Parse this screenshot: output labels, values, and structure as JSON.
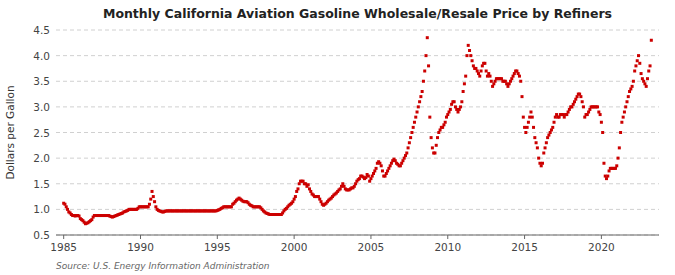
{
  "chart_data": {
    "type": "scatter",
    "title": "Monthly California Aviation Gasoline Wholesale/Resale Price by Refiners",
    "y_label": "Dollars per Gallon",
    "annotations": [
      "Source: U.S. Energy Information Administration"
    ],
    "color": "#cc0000",
    "marker": "square",
    "grid": "y",
    "xlim": [
      1984.5,
      2023.75
    ],
    "ylim": [
      0.5,
      4.5
    ],
    "xticks": [
      1985,
      1990,
      1995,
      2000,
      2005,
      2010,
      2015,
      2020
    ],
    "yticks": [
      0.5,
      {
        "value": 1.0,
        "label": "1.0"
      },
      1.5,
      {
        "value": 2.0,
        "label": "2.0"
      },
      2.5,
      {
        "value": 3.0,
        "label": "3.0"
      },
      3.5,
      {
        "value": 4.0,
        "label": "4.0"
      },
      4.5
    ],
    "x": [
      1985.0,
      1985.083,
      1985.167,
      1985.25,
      1985.333,
      1985.417,
      1985.5,
      1985.583,
      1985.667,
      1985.75,
      1985.833,
      1985.917,
      1986.0,
      1986.083,
      1986.167,
      1986.25,
      1986.333,
      1986.417,
      1986.5,
      1986.583,
      1986.667,
      1986.75,
      1986.833,
      1986.917,
      1987.0,
      1987.083,
      1987.167,
      1987.25,
      1987.333,
      1987.417,
      1987.5,
      1987.583,
      1987.667,
      1987.75,
      1987.833,
      1987.917,
      1988.0,
      1988.083,
      1988.167,
      1988.25,
      1988.333,
      1988.417,
      1988.5,
      1988.583,
      1988.667,
      1988.75,
      1988.833,
      1988.917,
      1989.0,
      1989.083,
      1989.167,
      1989.25,
      1989.333,
      1989.417,
      1989.5,
      1989.583,
      1989.667,
      1989.75,
      1989.833,
      1989.917,
      1990.0,
      1990.083,
      1990.167,
      1990.25,
      1990.333,
      1990.417,
      1990.5,
      1990.583,
      1990.667,
      1990.75,
      1990.833,
      1990.917,
      1991.0,
      1991.083,
      1991.167,
      1991.25,
      1991.333,
      1991.417,
      1991.5,
      1991.583,
      1991.667,
      1991.75,
      1991.833,
      1991.917,
      1992.0,
      1992.083,
      1992.167,
      1992.25,
      1992.333,
      1992.417,
      1992.5,
      1992.583,
      1992.667,
      1992.75,
      1992.833,
      1992.917,
      1993.0,
      1993.083,
      1993.167,
      1993.25,
      1993.333,
      1993.417,
      1993.5,
      1993.583,
      1993.667,
      1993.75,
      1993.833,
      1993.917,
      1994.0,
      1994.083,
      1994.167,
      1994.25,
      1994.333,
      1994.417,
      1994.5,
      1994.583,
      1994.667,
      1994.75,
      1994.833,
      1994.917,
      1995.0,
      1995.083,
      1995.167,
      1995.25,
      1995.333,
      1995.417,
      1995.5,
      1995.583,
      1995.667,
      1995.75,
      1995.833,
      1995.917,
      1996.0,
      1996.083,
      1996.167,
      1996.25,
      1996.333,
      1996.417,
      1996.5,
      1996.583,
      1996.667,
      1996.75,
      1996.833,
      1996.917,
      1997.0,
      1997.083,
      1997.167,
      1997.25,
      1997.333,
      1997.417,
      1997.5,
      1997.583,
      1997.667,
      1997.75,
      1997.833,
      1997.917,
      1998.0,
      1998.083,
      1998.167,
      1998.25,
      1998.333,
      1998.417,
      1998.5,
      1998.583,
      1998.667,
      1998.75,
      1998.833,
      1998.917,
      1999.0,
      1999.083,
      1999.167,
      1999.25,
      1999.333,
      1999.417,
      1999.5,
      1999.583,
      1999.667,
      1999.75,
      1999.833,
      1999.917,
      2000.0,
      2000.083,
      2000.167,
      2000.25,
      2000.333,
      2000.417,
      2000.5,
      2000.583,
      2000.667,
      2000.75,
      2000.833,
      2000.917,
      2001.0,
      2001.083,
      2001.167,
      2001.25,
      2001.333,
      2001.417,
      2001.5,
      2001.583,
      2001.667,
      2001.75,
      2001.833,
      2001.917,
      2002.0,
      2002.083,
      2002.167,
      2002.25,
      2002.333,
      2002.417,
      2002.5,
      2002.583,
      2002.667,
      2002.75,
      2002.833,
      2002.917,
      2003.0,
      2003.083,
      2003.167,
      2003.25,
      2003.333,
      2003.417,
      2003.5,
      2003.583,
      2003.667,
      2003.75,
      2003.833,
      2003.917,
      2004.0,
      2004.083,
      2004.167,
      2004.25,
      2004.333,
      2004.417,
      2004.5,
      2004.583,
      2004.667,
      2004.75,
      2004.833,
      2004.917,
      2005.0,
      2005.083,
      2005.167,
      2005.25,
      2005.333,
      2005.417,
      2005.5,
      2005.583,
      2005.667,
      2005.75,
      2005.833,
      2005.917,
      2006.0,
      2006.083,
      2006.167,
      2006.25,
      2006.333,
      2006.417,
      2006.5,
      2006.583,
      2006.667,
      2006.75,
      2006.833,
      2006.917,
      2007.0,
      2007.083,
      2007.167,
      2007.25,
      2007.333,
      2007.417,
      2007.5,
      2007.583,
      2007.667,
      2007.75,
      2007.833,
      2007.917,
      2008.0,
      2008.083,
      2008.167,
      2008.25,
      2008.333,
      2008.417,
      2008.5,
      2008.583,
      2008.667,
      2008.75,
      2008.833,
      2008.917,
      2009.0,
      2009.083,
      2009.167,
      2009.25,
      2009.333,
      2009.417,
      2009.5,
      2009.583,
      2009.667,
      2009.75,
      2009.833,
      2009.917,
      2010.0,
      2010.083,
      2010.167,
      2010.25,
      2010.333,
      2010.417,
      2010.5,
      2010.583,
      2010.667,
      2010.75,
      2010.833,
      2010.917,
      2011.0,
      2011.083,
      2011.167,
      2011.25,
      2011.333,
      2011.417,
      2011.5,
      2011.583,
      2011.667,
      2011.75,
      2011.833,
      2011.917,
      2012.0,
      2012.083,
      2012.167,
      2012.25,
      2012.333,
      2012.417,
      2012.5,
      2012.583,
      2012.667,
      2012.75,
      2012.833,
      2012.917,
      2013.0,
      2013.083,
      2013.167,
      2013.25,
      2013.333,
      2013.417,
      2013.5,
      2013.583,
      2013.667,
      2013.75,
      2013.833,
      2013.917,
      2014.0,
      2014.083,
      2014.167,
      2014.25,
      2014.333,
      2014.417,
      2014.5,
      2014.583,
      2014.667,
      2014.75,
      2014.833,
      2014.917,
      2015.0,
      2015.083,
      2015.167,
      2015.25,
      2015.333,
      2015.417,
      2015.5,
      2015.583,
      2015.667,
      2015.75,
      2015.833,
      2015.917,
      2016.0,
      2016.083,
      2016.167,
      2016.25,
      2016.333,
      2016.417,
      2016.5,
      2016.583,
      2016.667,
      2016.75,
      2016.833,
      2016.917,
      2017.0,
      2017.083,
      2017.167,
      2017.25,
      2017.333,
      2017.417,
      2017.5,
      2017.583,
      2017.667,
      2017.75,
      2017.833,
      2017.917,
      2018.0,
      2018.083,
      2018.167,
      2018.25,
      2018.333,
      2018.417,
      2018.5,
      2018.583,
      2018.667,
      2018.75,
      2018.833,
      2018.917,
      2019.0,
      2019.083,
      2019.167,
      2019.25,
      2019.333,
      2019.417,
      2019.5,
      2019.583,
      2019.667,
      2019.75,
      2019.833,
      2019.917,
      2020.0,
      2020.083,
      2020.167,
      2020.25,
      2020.333,
      2020.417,
      2020.5,
      2020.583,
      2020.667,
      2020.75,
      2020.833,
      2020.917,
      2021.0,
      2021.083,
      2021.167,
      2021.25,
      2021.333,
      2021.417,
      2021.5,
      2021.583,
      2021.667,
      2021.75,
      2021.833,
      2021.917,
      2022.0,
      2022.083,
      2022.167,
      2022.25,
      2022.333,
      2022.417,
      2022.5,
      2022.583,
      2022.667,
      2022.75,
      2022.833,
      2022.917,
      2023.0,
      2023.083,
      2023.167,
      2023.25
    ],
    "values": [
      1.12,
      1.1,
      1.05,
      1.0,
      0.95,
      0.93,
      0.9,
      0.88,
      0.88,
      0.87,
      0.88,
      0.88,
      0.87,
      0.82,
      0.8,
      0.78,
      0.75,
      0.72,
      0.73,
      0.74,
      0.76,
      0.78,
      0.8,
      0.85,
      0.88,
      0.88,
      0.88,
      0.88,
      0.88,
      0.88,
      0.88,
      0.88,
      0.88,
      0.88,
      0.88,
      0.88,
      0.87,
      0.86,
      0.85,
      0.86,
      0.87,
      0.88,
      0.89,
      0.9,
      0.91,
      0.92,
      0.93,
      0.95,
      0.96,
      0.97,
      0.98,
      1.0,
      1.0,
      1.0,
      1.0,
      1.0,
      1.0,
      1.0,
      1.02,
      1.05,
      1.05,
      1.05,
      1.05,
      1.05,
      1.05,
      1.05,
      1.05,
      1.1,
      1.2,
      1.35,
      1.25,
      1.15,
      1.05,
      1.0,
      0.98,
      0.97,
      0.96,
      0.95,
      0.95,
      0.96,
      0.97,
      0.97,
      0.97,
      0.97,
      0.97,
      0.97,
      0.97,
      0.97,
      0.97,
      0.97,
      0.97,
      0.97,
      0.97,
      0.97,
      0.97,
      0.97,
      0.97,
      0.97,
      0.97,
      0.97,
      0.97,
      0.97,
      0.97,
      0.97,
      0.97,
      0.97,
      0.97,
      0.97,
      0.97,
      0.97,
      0.97,
      0.97,
      0.97,
      0.97,
      0.97,
      0.97,
      0.97,
      0.97,
      0.97,
      0.97,
      0.98,
      0.99,
      1.0,
      1.02,
      1.03,
      1.05,
      1.05,
      1.05,
      1.05,
      1.05,
      1.05,
      1.05,
      1.1,
      1.12,
      1.15,
      1.18,
      1.2,
      1.22,
      1.2,
      1.18,
      1.16,
      1.15,
      1.15,
      1.15,
      1.13,
      1.1,
      1.08,
      1.07,
      1.05,
      1.05,
      1.05,
      1.05,
      1.05,
      1.05,
      1.03,
      1.0,
      0.97,
      0.95,
      0.93,
      0.92,
      0.91,
      0.9,
      0.9,
      0.9,
      0.9,
      0.9,
      0.9,
      0.9,
      0.9,
      0.9,
      0.9,
      0.93,
      0.97,
      1.0,
      1.02,
      1.05,
      1.08,
      1.1,
      1.12,
      1.15,
      1.2,
      1.25,
      1.35,
      1.4,
      1.5,
      1.55,
      1.55,
      1.55,
      1.5,
      1.5,
      1.45,
      1.48,
      1.4,
      1.35,
      1.3,
      1.28,
      1.25,
      1.25,
      1.25,
      1.25,
      1.2,
      1.15,
      1.1,
      1.08,
      1.1,
      1.12,
      1.15,
      1.18,
      1.2,
      1.22,
      1.25,
      1.28,
      1.3,
      1.32,
      1.35,
      1.38,
      1.4,
      1.45,
      1.5,
      1.45,
      1.4,
      1.38,
      1.38,
      1.38,
      1.4,
      1.42,
      1.42,
      1.45,
      1.5,
      1.55,
      1.58,
      1.6,
      1.65,
      1.65,
      1.63,
      1.6,
      1.62,
      1.68,
      1.65,
      1.55,
      1.6,
      1.65,
      1.7,
      1.75,
      1.8,
      1.9,
      1.93,
      1.9,
      1.85,
      1.75,
      1.65,
      1.65,
      1.7,
      1.75,
      1.8,
      1.85,
      1.9,
      1.95,
      1.98,
      1.95,
      1.9,
      1.88,
      1.85,
      1.85,
      1.9,
      1.95,
      2.0,
      2.05,
      2.1,
      2.2,
      2.3,
      2.4,
      2.5,
      2.6,
      2.7,
      2.8,
      2.9,
      3.0,
      3.1,
      3.2,
      3.3,
      3.5,
      3.7,
      4.0,
      4.35,
      3.8,
      2.8,
      2.4,
      2.2,
      2.1,
      2.1,
      2.25,
      2.4,
      2.5,
      2.55,
      2.6,
      2.6,
      2.65,
      2.7,
      2.8,
      2.85,
      2.9,
      2.95,
      3.05,
      3.1,
      3.1,
      3.0,
      2.95,
      2.9,
      2.95,
      3.0,
      3.1,
      3.3,
      3.45,
      3.6,
      4.0,
      4.2,
      4.1,
      4.0,
      3.9,
      3.8,
      3.75,
      3.75,
      3.7,
      3.65,
      3.6,
      3.7,
      3.8,
      3.85,
      3.85,
      3.7,
      3.6,
      3.65,
      3.6,
      3.5,
      3.4,
      3.45,
      3.5,
      3.55,
      3.55,
      3.55,
      3.55,
      3.55,
      3.5,
      3.5,
      3.5,
      3.45,
      3.4,
      3.45,
      3.5,
      3.55,
      3.6,
      3.65,
      3.7,
      3.7,
      3.65,
      3.6,
      3.5,
      3.2,
      2.8,
      2.6,
      2.5,
      2.6,
      2.7,
      2.8,
      2.9,
      2.8,
      2.6,
      2.4,
      2.3,
      2.2,
      2.0,
      1.9,
      1.85,
      1.9,
      2.1,
      2.2,
      2.3,
      2.4,
      2.45,
      2.5,
      2.55,
      2.6,
      2.7,
      2.8,
      2.85,
      2.8,
      2.8,
      2.85,
      2.85,
      2.85,
      2.8,
      2.85,
      2.85,
      2.9,
      2.95,
      3.0,
      3.0,
      3.05,
      3.1,
      3.15,
      3.2,
      3.25,
      3.25,
      3.2,
      3.1,
      3.0,
      2.8,
      2.85,
      2.85,
      2.9,
      2.95,
      3.0,
      3.0,
      3.0,
      3.0,
      3.0,
      3.0,
      2.9,
      2.85,
      2.7,
      2.5,
      1.9,
      1.65,
      1.6,
      1.65,
      1.75,
      1.8,
      1.8,
      1.8,
      1.8,
      1.8,
      1.85,
      2.0,
      2.2,
      2.5,
      2.7,
      2.8,
      2.9,
      3.0,
      3.1,
      3.2,
      3.3,
      3.35,
      3.4,
      3.5,
      3.7,
      3.8,
      3.9,
      4.0,
      3.85,
      3.65,
      3.55,
      3.5,
      3.45,
      3.4,
      3.55,
      3.7,
      3.8,
      4.3
    ]
  }
}
